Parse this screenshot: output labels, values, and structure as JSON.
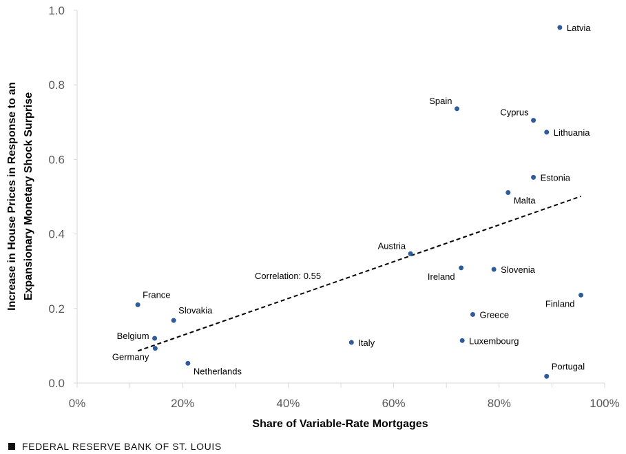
{
  "chart_data": {
    "type": "scatter",
    "xlabel": "Share of Variable-Rate Mortgages",
    "ylabel_lines": [
      "Increase in House Prices in Response to an",
      "Expansionary Monetary Shock Surprise"
    ],
    "xlim": [
      0,
      100
    ],
    "ylim": [
      0,
      1.0
    ],
    "x_ticks": [
      "0%",
      "20%",
      "40%",
      "60%",
      "80%",
      "100%"
    ],
    "x_tick_values": [
      0,
      20,
      40,
      60,
      80,
      100
    ],
    "y_ticks": [
      "0.0",
      "0.2",
      "0.4",
      "0.6",
      "0.8",
      "1.0"
    ],
    "y_tick_values": [
      0,
      0.2,
      0.4,
      0.6,
      0.8,
      1.0
    ],
    "grid": false,
    "point_color": "#2E5C9A",
    "points": [
      {
        "label": "Latvia",
        "x": 91.5,
        "y": 0.954,
        "pos": "right"
      },
      {
        "label": "Spain",
        "x": 72.0,
        "y": 0.736,
        "pos": "above-left"
      },
      {
        "label": "Cyprus",
        "x": 86.5,
        "y": 0.705,
        "pos": "above-left"
      },
      {
        "label": "Lithuania",
        "x": 89.0,
        "y": 0.673,
        "pos": "right"
      },
      {
        "label": "Estonia",
        "x": 86.5,
        "y": 0.552,
        "pos": "right"
      },
      {
        "label": "Malta",
        "x": 81.7,
        "y": 0.511,
        "pos": "below-right"
      },
      {
        "label": "Austria",
        "x": 63.2,
        "y": 0.347,
        "pos": "above-left"
      },
      {
        "label": "Ireland",
        "x": 72.8,
        "y": 0.309,
        "pos": "below-left"
      },
      {
        "label": "Slovenia",
        "x": 79.0,
        "y": 0.305,
        "pos": "right"
      },
      {
        "label": "Finland",
        "x": 95.5,
        "y": 0.236,
        "pos": "below-left"
      },
      {
        "label": "France",
        "x": 11.5,
        "y": 0.21,
        "pos": "above-right"
      },
      {
        "label": "Greece",
        "x": 75.0,
        "y": 0.184,
        "pos": "right"
      },
      {
        "label": "Slovakia",
        "x": 18.3,
        "y": 0.168,
        "pos": "above-right"
      },
      {
        "label": "Belgium",
        "x": 14.7,
        "y": 0.12,
        "pos": "left"
      },
      {
        "label": "Luxembourg",
        "x": 73.0,
        "y": 0.114,
        "pos": "right"
      },
      {
        "label": "Italy",
        "x": 52.0,
        "y": 0.109,
        "pos": "right"
      },
      {
        "label": "Germany",
        "x": 14.8,
        "y": 0.093,
        "pos": "below-left"
      },
      {
        "label": "Netherlands",
        "x": 21.0,
        "y": 0.053,
        "pos": "below-right"
      },
      {
        "label": "Portugal",
        "x": 89.0,
        "y": 0.018,
        "pos": "above-right"
      }
    ],
    "trendline": {
      "x": [
        11.5,
        95.5
      ],
      "y": [
        0.086,
        0.501
      ],
      "style": "dashed"
    },
    "annotation": "Correlation: 0.55"
  },
  "footer": {
    "source": "FEDERAL RESERVE BANK OF ST. LOUIS"
  }
}
